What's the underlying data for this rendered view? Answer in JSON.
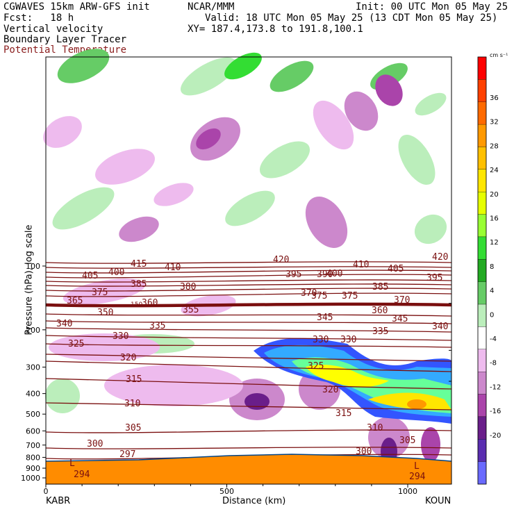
{
  "header": {
    "model": "CGWAVES 15km ARW-GFS init",
    "fcst": "Fcst:   18 h",
    "org": "NCAR/MMM",
    "init": "Init: 00 UTC Mon 05 May 25",
    "valid": "Valid: 18 UTC Mon 05 May 25 (13 CDT Mon 05 May 25)",
    "xy": "XY= 187.4,173.8 to 191.8,100.1",
    "field1": "Vertical velocity",
    "field2": "Boundary Layer Tracer",
    "field3": "Potential Temperature"
  },
  "colors": {
    "theta": "#7a0f0f",
    "terrain": "#ff8c00",
    "accent_label": "#8a1c1c"
  },
  "chart_data": {
    "type": "heatmap",
    "title": "Vertical velocity",
    "xlabel": "Distance (km)",
    "ylabel": "Pressure (hPa), log scale",
    "x_ticks": [
      0,
      500,
      1000
    ],
    "y_ticks": [
      100,
      200,
      300,
      400,
      500,
      600,
      700,
      800,
      900,
      1000
    ],
    "xlim": [
      0,
      1100
    ],
    "left_station": "KABR",
    "right_station": "KOUN",
    "colorbar": {
      "unit": "cm s⁻¹",
      "levels": [
        36,
        32,
        28,
        24,
        20,
        16,
        12,
        8,
        4,
        0,
        -4,
        -8,
        -12,
        -16,
        -20
      ],
      "colors": [
        "#ff0000",
        "#ff4000",
        "#ff6a00",
        "#ff9900",
        "#ffc000",
        "#ffe600",
        "#e6ff00",
        "#99ff33",
        "#33dd33",
        "#22aa22",
        "#66cc66",
        "#bbeebb",
        "#ffffff",
        "#eebbee",
        "#cc88cc",
        "#aa44aa",
        "#6a1e8a",
        "#5a2db0",
        "#6a6aff"
      ]
    },
    "isentrope_labels": [
      "420",
      "415",
      "410",
      "405",
      "400",
      "395",
      "390",
      "385",
      "380",
      "375",
      "370",
      "365",
      "360",
      "355",
      "350",
      "345",
      "340",
      "335",
      "330",
      "325",
      "320",
      "315",
      "310",
      "305",
      "300",
      "297",
      "294"
    ],
    "surface_markers": [
      "L",
      "L"
    ],
    "misc_label": "150"
  }
}
